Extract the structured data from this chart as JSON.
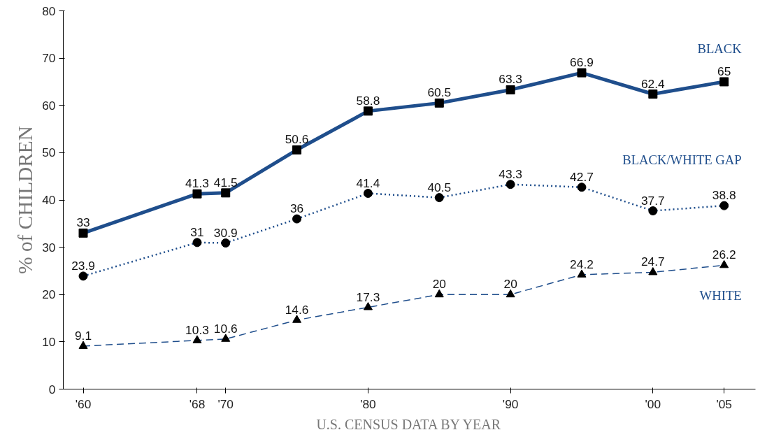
{
  "chart_data": {
    "type": "line",
    "xlabel": "U.S. CENSUS DATA BY YEAR",
    "ylabel": "% of CHILDREN",
    "x": [
      1960,
      1968,
      1970,
      1975,
      1980,
      1985,
      1990,
      1995,
      2000,
      2005
    ],
    "xlim": [
      1958.6,
      2007.2
    ],
    "xticks": [
      {
        "value": 1960,
        "label": "'60"
      },
      {
        "value": 1968,
        "label": "'68"
      },
      {
        "value": 1970,
        "label": "'70"
      },
      {
        "value": 1980,
        "label": "'80"
      },
      {
        "value": 1990,
        "label": "'90"
      },
      {
        "value": 2000,
        "label": "'00"
      },
      {
        "value": 2005,
        "label": "'05"
      }
    ],
    "ylim": [
      0,
      80
    ],
    "yticks": [
      0,
      10,
      20,
      30,
      40,
      50,
      60,
      70,
      80
    ],
    "grid": false,
    "data_labels": true,
    "series": [
      {
        "name": "BLACK",
        "color": "#1f4e8c",
        "marker": "square",
        "line_style": "solid",
        "values": [
          33,
          41.3,
          41.5,
          50.6,
          58.8,
          60.5,
          63.3,
          66.9,
          62.4,
          65
        ]
      },
      {
        "name": "BLACK/WHITE GAP",
        "color": "#1f4e8c",
        "marker": "circle",
        "line_style": "dotted",
        "values": [
          23.9,
          31,
          30.9,
          36,
          41.4,
          40.5,
          43.3,
          42.7,
          37.7,
          38.8
        ]
      },
      {
        "name": "WHITE",
        "color": "#1f4e8c",
        "marker": "triangle",
        "line_style": "dashed",
        "values": [
          9.1,
          10.3,
          10.6,
          14.6,
          17.3,
          20,
          20,
          24.2,
          24.7,
          26.2
        ]
      }
    ]
  }
}
